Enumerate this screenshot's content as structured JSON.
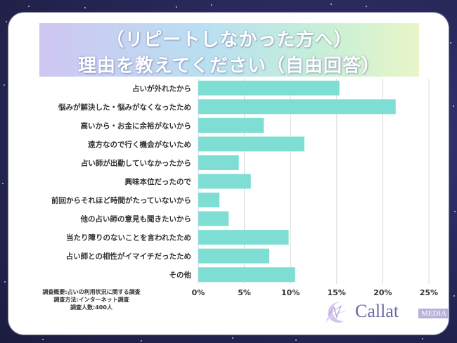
{
  "title": {
    "line1": "（リピートしなかった方へ）",
    "line2": "理由を教えてください（自由回答）"
  },
  "chart_data": {
    "type": "bar",
    "orientation": "horizontal",
    "categories": [
      "占いが外れたから",
      "悩みが解決した・悩みがなくなったため",
      "高いから・お金に余裕がないから",
      "遠方なので行く機会がないため",
      "占い師が出勤していなかったから",
      "興味本位だったので",
      "前回からそれほど時間がたっていないから",
      "他の占い師の意見も聞きたいから",
      "当たり障りのないことを言われたため",
      "占い師との相性がイマイチだったため",
      "その他"
    ],
    "values": [
      15.3,
      21.4,
      7.1,
      11.5,
      4.4,
      5.7,
      2.3,
      3.3,
      9.8,
      7.7,
      10.5
    ],
    "unit": "%",
    "xlim": [
      0,
      25
    ],
    "xticks": [
      "0%",
      "5%",
      "10%",
      "15%",
      "20%",
      "25%"
    ],
    "grid": true,
    "bar_color": "#7fded4",
    "title": "",
    "xlabel": "",
    "ylabel": ""
  },
  "notes": {
    "line1": "調査概要:占いの利用状況に関する調査",
    "line2": "調査方法:インターネット調査",
    "line3": "調査人数:400人"
  },
  "logo": {
    "name": "Callat",
    "badge": "MEDIA"
  }
}
